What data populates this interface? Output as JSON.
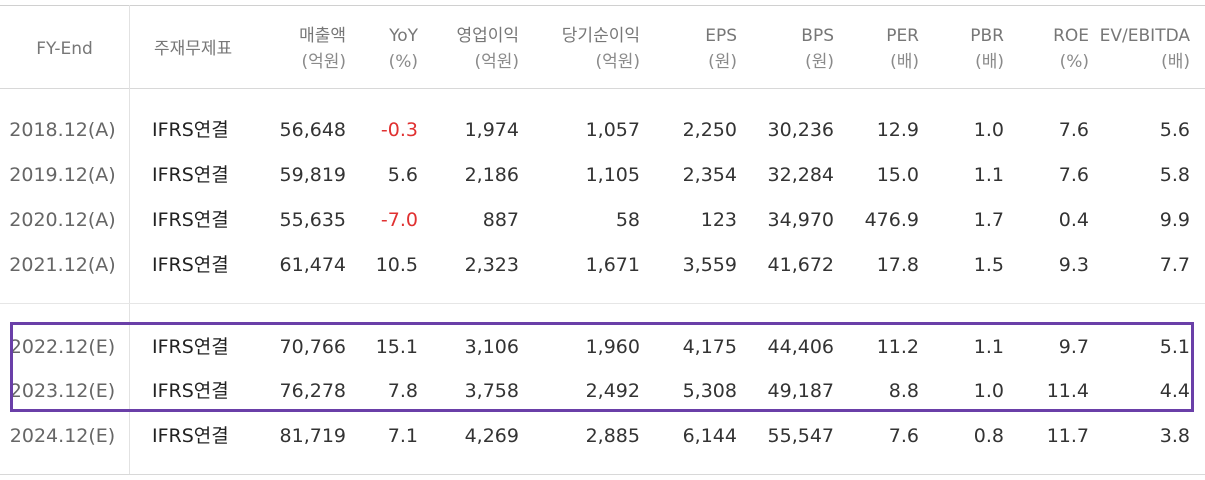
{
  "headers": [
    {
      "l1": "FY-End",
      "l2": ""
    },
    {
      "l1": "주재무제표",
      "l2": ""
    },
    {
      "l1": "매출액",
      "l2": "(억원)"
    },
    {
      "l1": "YoY",
      "l2": "(%)"
    },
    {
      "l1": "영업이익",
      "l2": "(억원)"
    },
    {
      "l1": "당기순이익",
      "l2": "(억원)"
    },
    {
      "l1": "EPS",
      "l2": "(원)"
    },
    {
      "l1": "BPS",
      "l2": "(원)"
    },
    {
      "l1": "PER",
      "l2": "(배)"
    },
    {
      "l1": "PBR",
      "l2": "(배)"
    },
    {
      "l1": "ROE",
      "l2": "(%)"
    },
    {
      "l1": "EV/EBITDA",
      "l2": "(배)"
    }
  ],
  "rows": [
    {
      "fy": "2018.12(A)",
      "std": "IFRS연결",
      "sales": "56,648",
      "yoy": "-0.3",
      "op": "1,974",
      "net": "1,057",
      "eps": "2,250",
      "bps": "30,236",
      "per": "12.9",
      "pbr": "1.0",
      "roe": "7.6",
      "ev": "5.6"
    },
    {
      "fy": "2019.12(A)",
      "std": "IFRS연결",
      "sales": "59,819",
      "yoy": "5.6",
      "op": "2,186",
      "net": "1,105",
      "eps": "2,354",
      "bps": "32,284",
      "per": "15.0",
      "pbr": "1.1",
      "roe": "7.6",
      "ev": "5.8"
    },
    {
      "fy": "2020.12(A)",
      "std": "IFRS연결",
      "sales": "55,635",
      "yoy": "-7.0",
      "op": "887",
      "net": "58",
      "eps": "123",
      "bps": "34,970",
      "per": "476.9",
      "pbr": "1.7",
      "roe": "0.4",
      "ev": "9.9"
    },
    {
      "fy": "2021.12(A)",
      "std": "IFRS연결",
      "sales": "61,474",
      "yoy": "10.5",
      "op": "2,323",
      "net": "1,671",
      "eps": "3,559",
      "bps": "41,672",
      "per": "17.8",
      "pbr": "1.5",
      "roe": "9.3",
      "ev": "7.7"
    },
    {
      "fy": "2022.12(E)",
      "std": "IFRS연결",
      "sales": "70,766",
      "yoy": "15.1",
      "op": "3,106",
      "net": "1,960",
      "eps": "4,175",
      "bps": "44,406",
      "per": "11.2",
      "pbr": "1.1",
      "roe": "9.7",
      "ev": "5.1"
    },
    {
      "fy": "2023.12(E)",
      "std": "IFRS연결",
      "sales": "76,278",
      "yoy": "7.8",
      "op": "3,758",
      "net": "2,492",
      "eps": "5,308",
      "bps": "49,187",
      "per": "8.8",
      "pbr": "1.0",
      "roe": "11.4",
      "ev": "4.4"
    },
    {
      "fy": "2024.12(E)",
      "std": "IFRS연결",
      "sales": "81,719",
      "yoy": "7.1",
      "op": "4,269",
      "net": "2,885",
      "eps": "6,144",
      "bps": "55,547",
      "per": "7.6",
      "pbr": "0.8",
      "roe": "11.7",
      "ev": "3.8"
    }
  ],
  "colors": {
    "negative": "#e03131",
    "highlight_border": "#6a3fa8"
  }
}
